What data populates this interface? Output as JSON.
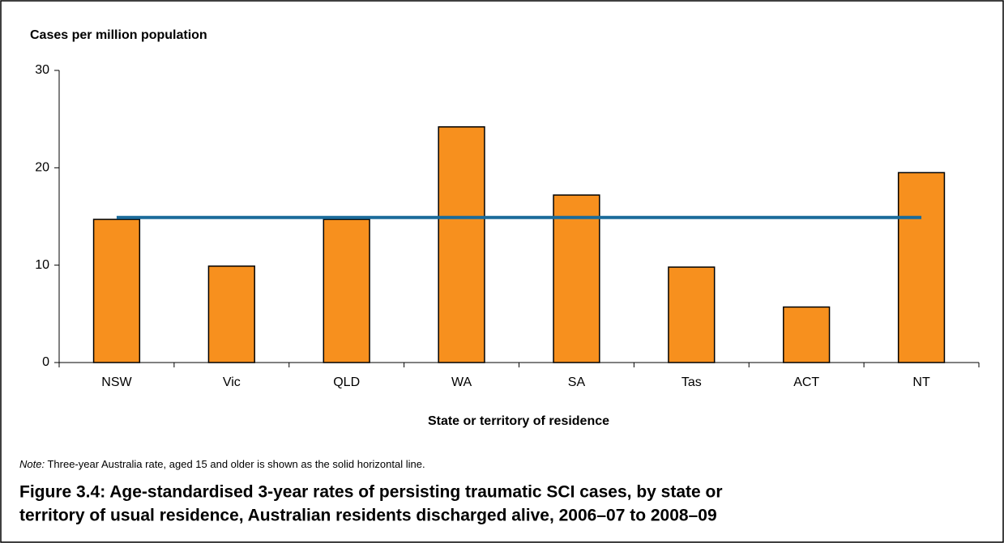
{
  "chart_data": {
    "type": "bar",
    "y_label": "Cases per million population",
    "x_label": "State or territory of residence",
    "categories": [
      "NSW",
      "Vic",
      "QLD",
      "WA",
      "SA",
      "Tas",
      "ACT",
      "NT"
    ],
    "values": [
      14.7,
      9.9,
      14.7,
      24.2,
      17.2,
      9.8,
      5.7,
      19.5
    ],
    "color": "#f7901e",
    "reference_line": {
      "value": 14.9,
      "color": "#1b6b9a"
    },
    "ylim": [
      0,
      30
    ],
    "yticks": [
      0,
      10,
      20,
      30
    ],
    "note_label": "Note:",
    "note": "Three-year Australia rate, aged 15 and older is shown as the solid horizontal line.",
    "caption": [
      "Figure 3.4: Age-standardised 3-year rates of persisting traumatic SCI cases, by state or",
      "territory of usual residence, Australian residents discharged alive, 2006–07 to 2008–09"
    ]
  }
}
